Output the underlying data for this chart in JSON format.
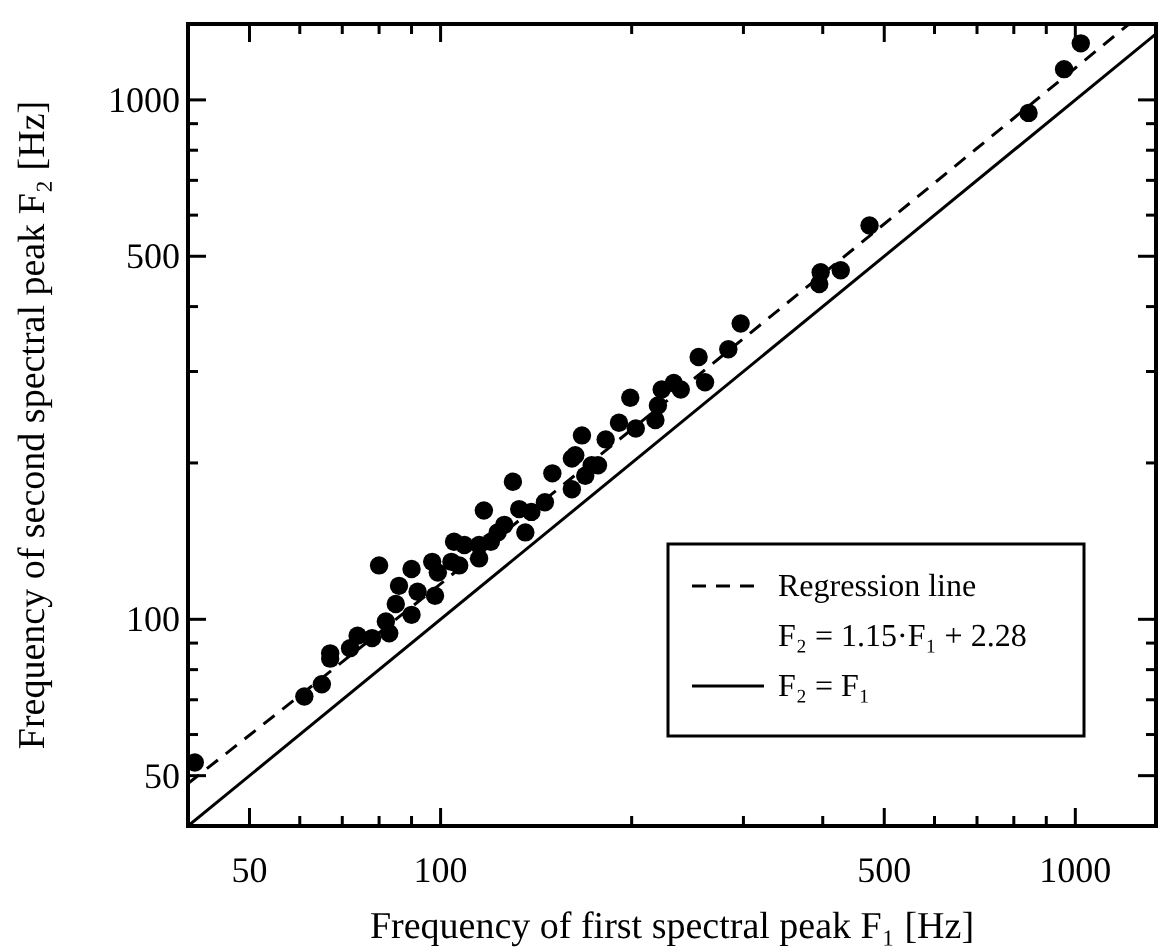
{
  "chart_data": {
    "type": "scatter",
    "xlabel": "Frequency of first spectral peak F₁ [Hz]",
    "ylabel": "Frequency of second spectral peak F₂ [Hz]",
    "log": "xy",
    "legend": "bottom right",
    "xlim": [
      40,
      1340
    ],
    "ylim": [
      40,
      1400
    ],
    "xticks": [
      50,
      {
        "value": 60,
        "label": null
      },
      {
        "value": 70,
        "label": null
      },
      {
        "value": 80,
        "label": null
      },
      {
        "value": 90,
        "label": null
      },
      100,
      {
        "value": 200,
        "label": null
      },
      {
        "value": 300,
        "label": null
      },
      {
        "value": 400,
        "label": null
      },
      500,
      {
        "value": 600,
        "label": null
      },
      {
        "value": 700,
        "label": null
      },
      {
        "value": 800,
        "label": null
      },
      {
        "value": 900,
        "label": null
      },
      1000
    ],
    "yticks": [
      50,
      {
        "value": 60,
        "label": null
      },
      {
        "value": 70,
        "label": null
      },
      {
        "value": 80,
        "label": null
      },
      {
        "value": 90,
        "label": null
      },
      100,
      {
        "value": 200,
        "label": null
      },
      {
        "value": 300,
        "label": null
      },
      {
        "value": 400,
        "label": null
      },
      500,
      {
        "value": 600,
        "label": null
      },
      {
        "value": 700,
        "label": null
      },
      {
        "value": 800,
        "label": null
      },
      {
        "value": 900,
        "label": null
      },
      1000
    ],
    "annotations": [
      "F₂ = 1.15·F₁ + 2.28"
    ],
    "series": [
      {
        "color": "#000000",
        "marker": "circle",
        "x": [
          1020,
          960,
          844,
          474,
          397,
          395,
          427,
          297,
          284,
          255,
          261,
          239,
          233,
          223,
          199,
          220,
          218,
          203,
          191,
          182,
          167,
          163,
          173,
          150,
          130,
          117,
          161,
          146,
          133,
          123,
          115,
          105,
          107,
          97,
          90,
          80,
          86,
          98,
          92,
          85,
          90,
          82,
          83,
          78,
          74,
          72,
          67,
          67,
          65,
          61,
          41,
          161,
          177,
          139,
          126,
          169,
          136,
          109,
          120,
          104,
          115,
          99
        ],
        "values": [
          1285,
          1146,
          944,
          573,
          466,
          442,
          470,
          371,
          331,
          320,
          286,
          277,
          285,
          277,
          267,
          258,
          242,
          233,
          239,
          222,
          226,
          207,
          198,
          191,
          184,
          162,
          178,
          168,
          163,
          147,
          139,
          141,
          127,
          129,
          125,
          127,
          116,
          111,
          113,
          107,
          102,
          99,
          94,
          92,
          93,
          88,
          84,
          86,
          75,
          71,
          53,
          204,
          198,
          161,
          152,
          189,
          147,
          139,
          141,
          129,
          131,
          123
        ]
      },
      {
        "type": "line",
        "name": "Regression line",
        "color": "#000000",
        "line_style": "dashed",
        "x": [
          40,
          60,
          100,
          200,
          400,
          700,
          1000,
          1215
        ],
        "values": [
          48.3,
          71.3,
          117,
          232,
          462,
          807,
          1152,
          1400
        ]
      },
      {
        "type": "line",
        "name": "F₂ = F₁",
        "color": "#000000",
        "line_style": "solid",
        "x": [
          40,
          1340
        ],
        "values": [
          40,
          1340
        ]
      }
    ]
  }
}
